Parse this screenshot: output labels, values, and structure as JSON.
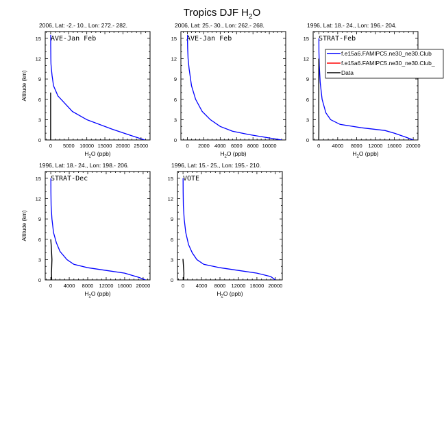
{
  "figure": {
    "title": "Tropics DJF H",
    "title_sub": "2",
    "title_tail": "O"
  },
  "legend": {
    "entries": [
      {
        "label": "f.e15a6.FAMIPC5.ne30_ne30.Club",
        "color": "#0000ff"
      },
      {
        "label": "f.e15a6.FAMIPC5.ne30_ne30.Club_",
        "color": "#ff0000"
      },
      {
        "label": "Data",
        "color": "#000000"
      }
    ]
  },
  "chart_data": [
    {
      "type": "line",
      "header": "2006, Lat: -2.- 10., Lon: 272.- 282.",
      "panel_label": "AVE-Jan Feb",
      "xlabel": "H2O (ppb)",
      "ylabel": "Altitude (km)",
      "xlim": [
        -1500,
        27500
      ],
      "ylim": [
        0,
        16
      ],
      "xticks": [
        0,
        5000,
        10000,
        15000,
        20000,
        25000
      ],
      "xtick_labels": [
        "0",
        "5000",
        "10000",
        "15000",
        "20000",
        "25000"
      ],
      "yticks": [
        0,
        3,
        6,
        9,
        12,
        15
      ],
      "ytick_labels": [
        "0",
        "3",
        "6",
        "9",
        "12",
        "15"
      ],
      "series": [
        {
          "name": "f.e15a6.FAMIPC5.ne30_ne30.Club",
          "color": "#0000ff",
          "x": [
            26000,
            22000,
            17000,
            10000,
            6000,
            2000,
            800,
            400,
            200,
            100,
            50,
            30,
            20,
            10,
            8
          ],
          "y": [
            0,
            0.7,
            1.6,
            3,
            4.2,
            6.5,
            8,
            9.5,
            10.5,
            11.2,
            12,
            13,
            14,
            15,
            15.5
          ]
        },
        {
          "name": "Data",
          "color": "#000000",
          "x": [
            0,
            0,
            0
          ],
          "y": [
            0,
            5,
            7
          ]
        }
      ]
    },
    {
      "type": "line",
      "header": "2006, Lat: 25.- 30., Lon: 262.- 268.",
      "panel_label": "AVE-Jan Feb",
      "xlabel": "H2O (ppb)",
      "ylabel": "",
      "xlim": [
        -800,
        12000
      ],
      "ylim": [
        0,
        16
      ],
      "xticks": [
        0,
        2000,
        4000,
        6000,
        8000,
        10000
      ],
      "xtick_labels": [
        "0",
        "2000",
        "4000",
        "6000",
        "8000",
        "10000"
      ],
      "yticks": [
        0,
        3,
        6,
        9,
        12,
        15
      ],
      "ytick_labels": [
        "0",
        "3",
        "6",
        "9",
        "12",
        "15"
      ],
      "series": [
        {
          "name": "f.e15a6.FAMIPC5.ne30_ne30.Club",
          "color": "#0000ff",
          "x": [
            11500,
            9500,
            7500,
            5500,
            4000,
            2800,
            1800,
            1000,
            500,
            200,
            80,
            30,
            15,
            10
          ],
          "y": [
            0,
            0.4,
            0.8,
            1.3,
            2,
            3,
            4.2,
            6,
            8,
            10.5,
            12,
            13.5,
            14.5,
            15.5
          ]
        }
      ]
    },
    {
      "type": "line",
      "header": "1996, Lat: 18.- 24., Lon: 196.- 204.",
      "panel_label": "STRAT-Feb",
      "xlabel": "H2O (ppb)",
      "ylabel": "",
      "xlim": [
        -1200,
        21000
      ],
      "ylim": [
        0,
        16
      ],
      "xticks": [
        0,
        4000,
        8000,
        12000,
        16000,
        20000
      ],
      "xtick_labels": [
        "0",
        "4000",
        "8000",
        "12000",
        "16000",
        "20000"
      ],
      "yticks": [
        0,
        3,
        6,
        9,
        12,
        15
      ],
      "ytick_labels": [
        "0",
        "3",
        "6",
        "9",
        "12",
        "15"
      ],
      "series": [
        {
          "name": "f.e15a6.FAMIPC5.ne30_ne30.Club",
          "color": "#0000ff",
          "x": [
            20000,
            18500,
            16000,
            14000,
            9000,
            4500,
            2500,
            1500,
            700,
            300,
            100,
            40,
            15
          ],
          "y": [
            0,
            0.4,
            1,
            1.4,
            1.8,
            2.3,
            3,
            4,
            6,
            8.5,
            11,
            13,
            15
          ]
        },
        {
          "name": "Data",
          "color": "#000000",
          "x": [
            0,
            20,
            0,
            0
          ],
          "y": [
            0,
            2,
            4,
            12
          ]
        }
      ]
    },
    {
      "type": "line",
      "header": "1996, Lat: 18.- 24., Lon: 198.- 206.",
      "panel_label": "STRAT-Dec",
      "xlabel": "H2O (ppb)",
      "ylabel": "Altitude (km)",
      "xlim": [
        -1200,
        21500
      ],
      "ylim": [
        0,
        16
      ],
      "xticks": [
        0,
        4000,
        8000,
        12000,
        16000,
        20000
      ],
      "xtick_labels": [
        "0",
        "4000",
        "8000",
        "12000",
        "16000",
        "20000"
      ],
      "yticks": [
        0,
        3,
        6,
        9,
        12,
        15
      ],
      "ytick_labels": [
        "0",
        "3",
        "6",
        "9",
        "12",
        "15"
      ],
      "series": [
        {
          "name": "f.e15a6.FAMIPC5.ne30_ne30.Club",
          "color": "#0000ff",
          "x": [
            20500,
            19000,
            16000,
            12000,
            8000,
            5000,
            3500,
            2000,
            1200,
            600,
            250,
            80,
            30,
            15
          ],
          "y": [
            0,
            0.4,
            1,
            1.4,
            1.8,
            2.3,
            3,
            4.2,
            5.5,
            7,
            9,
            11,
            13,
            15
          ]
        },
        {
          "name": "Data",
          "color": "#000000",
          "x": [
            200,
            150,
            250,
            100,
            0
          ],
          "y": [
            0,
            1,
            3,
            5,
            6
          ]
        }
      ]
    },
    {
      "type": "line",
      "header": "1996, Lat: 15.- 25., Lon: 195.- 210.",
      "panel_label": "VOTE",
      "xlabel": "H2O (ppb)",
      "ylabel": "",
      "xlim": [
        -1200,
        21500
      ],
      "ylim": [
        0,
        16
      ],
      "xticks": [
        0,
        4000,
        8000,
        12000,
        16000,
        20000
      ],
      "xtick_labels": [
        "0",
        "4000",
        "8000",
        "12000",
        "16000",
        "20000"
      ],
      "yticks": [
        0,
        3,
        6,
        9,
        12,
        15
      ],
      "ytick_labels": [
        "0",
        "3",
        "6",
        "9",
        "12",
        "15"
      ],
      "series": [
        {
          "name": "f.e15a6.FAMIPC5.ne30_ne30.Club",
          "color": "#0000ff",
          "x": [
            20000,
            19000,
            16000,
            12000,
            8000,
            4500,
            3000,
            2000,
            1200,
            600,
            250,
            80,
            30,
            15
          ],
          "y": [
            0,
            0.5,
            1,
            1.4,
            1.8,
            2.3,
            3,
            4,
            5.2,
            7,
            9,
            11,
            13,
            15
          ]
        },
        {
          "name": "Data",
          "color": "#000000",
          "x": [
            150,
            200,
            100,
            0,
            0
          ],
          "y": [
            0,
            1,
            2,
            3,
            3.1
          ]
        }
      ]
    }
  ]
}
